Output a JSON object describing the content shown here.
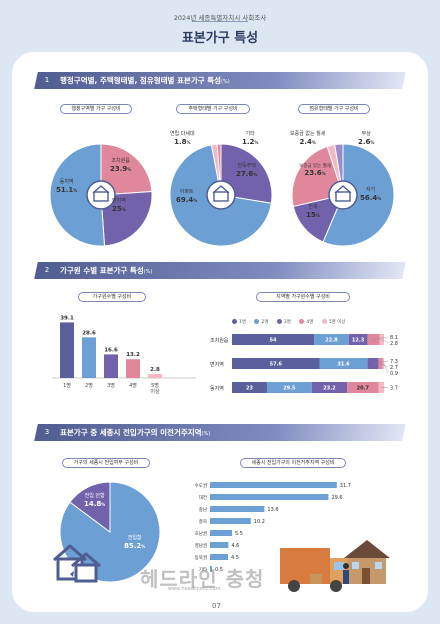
{
  "header": {
    "survey": "2024년 세종특별자치시 사회조사",
    "title": "표본가구 특성"
  },
  "sections": [
    {
      "num": "1",
      "title": "행정구역별, 주택형태별, 점유형태별 표본가구 특성",
      "unit": "(%)"
    },
    {
      "num": "2",
      "title": "가구원 수별 표본가구 특성",
      "unit": "(%)"
    },
    {
      "num": "3",
      "title": "표본가구 중 세종시 전입가구의 이전거주지역",
      "unit": "(%)"
    }
  ],
  "chart_data": [
    {
      "type": "pie",
      "title": "행정구역별 가구 구성비",
      "slices": [
        {
          "label": "조치원읍",
          "value": 23.9,
          "color": "#e0879b"
        },
        {
          "label": "면지역",
          "value": 25.0,
          "color": "#7262ac"
        },
        {
          "label": "동지역",
          "value": 51.1,
          "color": "#6c9fd4"
        }
      ]
    },
    {
      "type": "pie",
      "title": "주택형태별 가구 구성비",
      "slices": [
        {
          "label": "단독주택",
          "value": 27.6,
          "color": "#7262ac"
        },
        {
          "label": "아파트",
          "value": 69.4,
          "color": "#6c9fd4"
        },
        {
          "label": "연립 다세대",
          "value": 1.8,
          "color": "#f2b8c3"
        },
        {
          "label": "기타",
          "value": 1.2,
          "color": "#e0879b"
        }
      ]
    },
    {
      "type": "pie",
      "title": "점유형태별 가구 구성비",
      "slices": [
        {
          "label": "자가",
          "value": 56.4,
          "color": "#6c9fd4"
        },
        {
          "label": "전세",
          "value": 15.0,
          "color": "#7262ac"
        },
        {
          "label": "보증금 있는 월세",
          "value": 23.6,
          "color": "#e0879b"
        },
        {
          "label": "보증금 없는 월세",
          "value": 2.4,
          "color": "#f2b8c3"
        },
        {
          "label": "무상",
          "value": 2.6,
          "color": "#9a8cc8"
        }
      ]
    },
    {
      "type": "bar",
      "title": "가구원수별 구성비",
      "categories": [
        "1명",
        "2명",
        "3명",
        "4명",
        "5명 이상"
      ],
      "values": [
        39.1,
        28.6,
        16.6,
        13.2,
        2.8
      ],
      "colors": [
        "#5b5f9c",
        "#6c9fd4",
        "#7262ac",
        "#e0879b",
        "#f2b8c3"
      ],
      "ylim": [
        0,
        45
      ]
    },
    {
      "type": "bar",
      "title": "지역별 가구원수별 구성비",
      "stacked": true,
      "orientation": "horizontal",
      "categories": [
        "조치원읍",
        "면지역",
        "동지역"
      ],
      "series": [
        {
          "name": "1명",
          "color": "#5b5f9c",
          "values": [
            54.0,
            57.6,
            23.0
          ]
        },
        {
          "name": "2명",
          "color": "#6c9fd4",
          "values": [
            22.8,
            31.6,
            29.5
          ]
        },
        {
          "name": "3명",
          "color": "#7262ac",
          "values": [
            12.3,
            7.3,
            23.2
          ]
        },
        {
          "name": "4명",
          "color": "#e0879b",
          "values": [
            8.1,
            2.7,
            20.7
          ]
        },
        {
          "name": "5명 이상",
          "color": "#f2b8c3",
          "values": [
            2.8,
            0.9,
            3.7
          ]
        }
      ]
    },
    {
      "type": "pie",
      "title": "가구의 세종시 전입여부 구성비",
      "slices": [
        {
          "label": "전입함",
          "value": 85.2,
          "color": "#6c9fd4"
        },
        {
          "label": "전입 안함",
          "value": 14.8,
          "color": "#7262ac"
        }
      ]
    },
    {
      "type": "bar",
      "title": "세종시 전입가구의 이전거주지역 구성비",
      "orientation": "horizontal",
      "categories": [
        "수도권",
        "대전",
        "충남",
        "충북",
        "호남권",
        "영남권",
        "동북권",
        "기타"
      ],
      "values": [
        31.7,
        29.6,
        13.6,
        10.2,
        5.5,
        4.6,
        4.5,
        0.5
      ],
      "color": "#6c9fd4",
      "xlim": [
        0,
        33
      ]
    }
  ],
  "watermark": {
    "text": "헤드라인 충청",
    "url": "www.headlinecc.com"
  },
  "footer": {
    "page": "07"
  }
}
